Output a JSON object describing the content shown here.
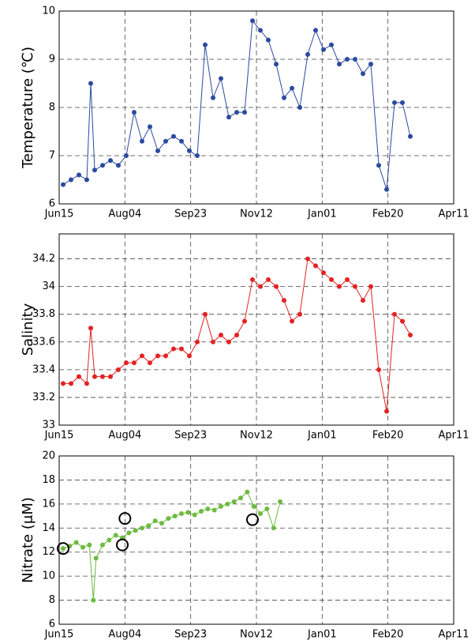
{
  "chart_data": [
    {
      "type": "line",
      "ylabel": "Temperature (℃)",
      "grid": true,
      "xlim": [
        0,
        300
      ],
      "xticks": [
        {
          "value": 0,
          "label": "Jun15"
        },
        {
          "value": 50,
          "label": "Aug04"
        },
        {
          "value": 100,
          "label": "Sep23"
        },
        {
          "value": 150,
          "label": "Nov12"
        },
        {
          "value": 200,
          "label": "Jan01"
        },
        {
          "value": 250,
          "label": "Feb20"
        },
        {
          "value": 300,
          "label": "Apr11"
        }
      ],
      "ylim": [
        6,
        10
      ],
      "yticks": [
        6,
        7,
        8,
        9,
        10
      ],
      "series": [
        {
          "color": "#2b4aa0",
          "marker": "dot",
          "x": [
            3,
            9,
            15,
            21,
            24,
            27,
            33,
            39,
            45,
            51,
            57,
            63,
            69,
            75,
            81,
            87,
            93,
            99,
            105,
            111,
            117,
            123,
            129,
            135,
            141,
            147,
            153,
            159,
            165,
            171,
            177,
            183,
            189,
            195,
            201,
            207,
            213,
            219,
            225,
            231,
            237,
            243,
            249,
            255,
            261,
            267
          ],
          "values": [
            6.4,
            6.5,
            6.6,
            6.5,
            8.5,
            6.7,
            6.8,
            6.9,
            6.8,
            7.0,
            7.9,
            7.3,
            7.6,
            7.1,
            7.3,
            7.4,
            7.3,
            7.1,
            7.0,
            9.3,
            8.2,
            8.6,
            7.8,
            7.9,
            7.9,
            9.8,
            9.6,
            9.4,
            8.9,
            8.2,
            8.4,
            8.0,
            9.1,
            9.6,
            9.2,
            9.3,
            8.9,
            9.0,
            9.0,
            8.7,
            8.9,
            6.8,
            6.3,
            8.1,
            8.1,
            7.4
          ]
        }
      ]
    },
    {
      "type": "line",
      "ylabel": "Salinity",
      "grid": true,
      "xlim": [
        0,
        300
      ],
      "xticks": [
        {
          "value": 0,
          "label": "Jun15"
        },
        {
          "value": 50,
          "label": "Aug04"
        },
        {
          "value": 100,
          "label": "Sep23"
        },
        {
          "value": 150,
          "label": "Nov12"
        },
        {
          "value": 200,
          "label": "Jan01"
        },
        {
          "value": 250,
          "label": "Feb20"
        },
        {
          "value": 300,
          "label": "Apr11"
        }
      ],
      "ylim": [
        33,
        34.38
      ],
      "yticks": [
        33,
        33.2,
        33.4,
        33.6,
        33.8,
        34,
        34.2
      ],
      "series": [
        {
          "color": "#e32222",
          "marker": "dot",
          "x": [
            3,
            9,
            15,
            21,
            24,
            27,
            33,
            39,
            45,
            51,
            57,
            63,
            69,
            75,
            81,
            87,
            93,
            99,
            105,
            111,
            117,
            123,
            129,
            135,
            141,
            147,
            153,
            159,
            165,
            171,
            177,
            183,
            189,
            195,
            201,
            207,
            213,
            219,
            225,
            231,
            237,
            243,
            249,
            255,
            261,
            267
          ],
          "values": [
            33.3,
            33.3,
            33.35,
            33.3,
            33.7,
            33.35,
            33.35,
            33.35,
            33.4,
            33.45,
            33.45,
            33.5,
            33.45,
            33.5,
            33.5,
            33.55,
            33.55,
            33.5,
            33.6,
            33.8,
            33.6,
            33.65,
            33.6,
            33.65,
            33.75,
            34.05,
            34.0,
            34.05,
            34.0,
            33.9,
            33.75,
            33.8,
            34.2,
            34.15,
            34.1,
            34.05,
            34.0,
            34.05,
            34.0,
            33.9,
            34.0,
            33.4,
            33.1,
            33.8,
            33.75,
            33.65
          ]
        }
      ]
    },
    {
      "type": "line",
      "ylabel": "Nitrate (μM)",
      "grid": true,
      "xlim": [
        0,
        300
      ],
      "xticks": [
        {
          "value": 0,
          "label": "Jun15"
        },
        {
          "value": 50,
          "label": "Aug04"
        },
        {
          "value": 100,
          "label": "Sep23"
        },
        {
          "value": 150,
          "label": "Nov12"
        },
        {
          "value": 200,
          "label": "Jan01"
        },
        {
          "value": 250,
          "label": "Feb20"
        },
        {
          "value": 300,
          "label": "Apr11"
        }
      ],
      "ylim": [
        6,
        20
      ],
      "yticks": [
        6,
        8,
        10,
        12,
        14,
        16,
        18,
        20
      ],
      "series": [
        {
          "color": "#6dbb3f",
          "marker": "dot",
          "x": [
            3,
            8,
            13,
            18,
            23,
            26,
            28,
            33,
            38,
            43,
            48,
            53,
            58,
            63,
            68,
            73,
            78,
            83,
            88,
            93,
            98,
            103,
            108,
            113,
            118,
            123,
            128,
            133,
            138,
            143,
            148,
            153,
            158,
            163,
            168
          ],
          "values": [
            12.3,
            12.5,
            12.8,
            12.4,
            12.6,
            8.0,
            11.5,
            12.6,
            13.0,
            13.4,
            13.2,
            13.6,
            13.8,
            14.0,
            14.2,
            14.6,
            14.4,
            14.8,
            15.0,
            15.2,
            15.3,
            15.1,
            15.4,
            15.6,
            15.5,
            15.8,
            16.0,
            16.2,
            16.5,
            17.0,
            15.8,
            15.2,
            15.6,
            14.0,
            16.2
          ]
        },
        {
          "color": "#000000",
          "marker": "open-circle",
          "line": false,
          "x": [
            3,
            50,
            48,
            147
          ],
          "values": [
            12.3,
            14.8,
            12.6,
            14.7
          ]
        }
      ]
    }
  ]
}
